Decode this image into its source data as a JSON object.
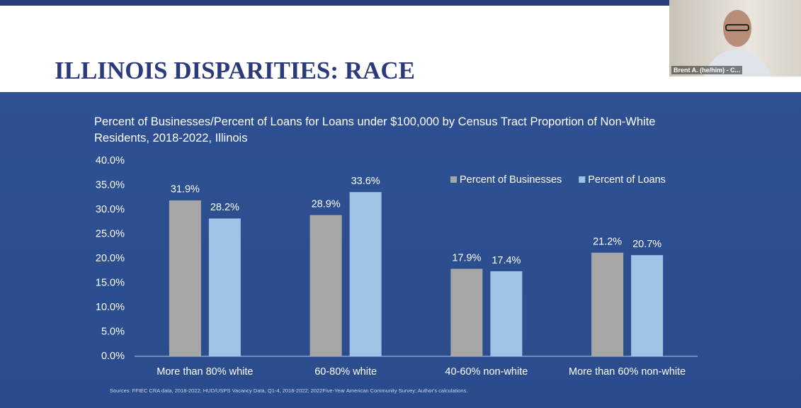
{
  "slide": {
    "title": "ILLINOIS DISPARITIES: RACE"
  },
  "video": {
    "name": "Brent A. (he/him) - C..."
  },
  "chart_data": {
    "type": "bar",
    "title": "Percent of Businesses/Percent of Loans for Loans under $100,000 by Census Tract Proportion of Non-White Residents, 2018-2022, Illinois",
    "categories": [
      "More than 80% white",
      "60-80% white",
      "40-60% non-white",
      "More than 60% non-white"
    ],
    "series": [
      {
        "name": "Percent of Businesses",
        "color": "#a6a6a6",
        "values": [
          31.9,
          28.9,
          17.9,
          21.2
        ],
        "value_labels": [
          "31.9%",
          "28.9%",
          "17.9%",
          "21.2%"
        ]
      },
      {
        "name": "Percent of Loans",
        "color": "#9dc3e6",
        "values": [
          28.2,
          33.6,
          17.4,
          20.7
        ],
        "value_labels": [
          "28.2%",
          "33.6%",
          "17.4%",
          "20.7%"
        ]
      }
    ],
    "ylim": [
      0,
      40
    ],
    "yticks": [
      {
        "value": 0,
        "label": "0.0%"
      },
      {
        "value": 5,
        "label": "5.0%"
      },
      {
        "value": 10,
        "label": "10.0%"
      },
      {
        "value": 15,
        "label": "15.0%"
      },
      {
        "value": 20,
        "label": "20.0%"
      },
      {
        "value": 25,
        "label": "25.0%"
      },
      {
        "value": 30,
        "label": "30.0%"
      },
      {
        "value": 35,
        "label": "35.0%"
      },
      {
        "value": 40,
        "label": "40.0%"
      }
    ],
    "legend": "top-right",
    "note": "Sources: FFIEC CRA data, 2018-2022; HUD/USPS Vacancy Data, Q1-4, 2018-2022; 2022Five-Year American Community Survey; Author's calculations."
  }
}
